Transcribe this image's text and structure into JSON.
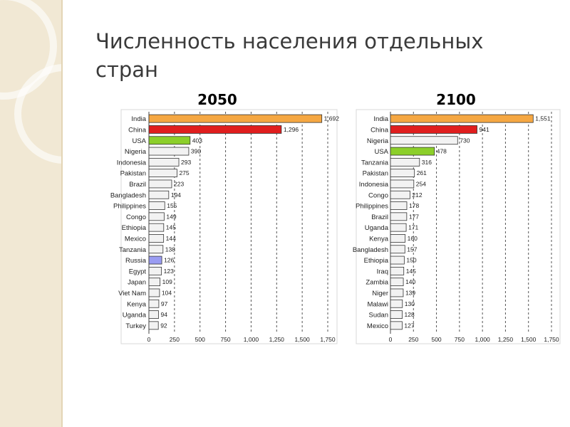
{
  "slide": {
    "title": "Численность населения отдельных стран"
  },
  "colors": {
    "orange": "#f5a742",
    "red": "#e01e1e",
    "green": "#8ccf2a",
    "blue": "#9a9cf2",
    "gray": "#f2f2f2"
  },
  "chart_data": [
    {
      "type": "bar",
      "orientation": "horizontal",
      "title": "2050",
      "categories": [
        "India",
        "China",
        "USA",
        "Nigeria",
        "Indonesia",
        "Pakistan",
        "Brazil",
        "Bangladesh",
        "Philippines",
        "Congo",
        "Ethiopia",
        "Mexico",
        "Tanzania",
        "Russia",
        "Egypt",
        "Japan",
        "Viet Nam",
        "Kenya",
        "Uganda",
        "Turkey"
      ],
      "values": [
        1692,
        1296,
        403,
        390,
        293,
        275,
        223,
        194,
        155,
        149,
        145,
        144,
        138,
        126,
        123,
        109,
        104,
        97,
        94,
        92
      ],
      "value_labels": [
        "1,692",
        "1,296",
        "403",
        "390",
        "293",
        "275",
        "223",
        "194",
        "155",
        "149",
        "145",
        "144",
        "138",
        "126",
        "123",
        "109",
        "104",
        "97",
        "94",
        "92"
      ],
      "colors": [
        "orange",
        "red",
        "green",
        "gray",
        "gray",
        "gray",
        "gray",
        "gray",
        "gray",
        "gray",
        "gray",
        "gray",
        "gray",
        "blue",
        "gray",
        "gray",
        "gray",
        "gray",
        "gray",
        "gray"
      ],
      "xlim": [
        0,
        1750
      ],
      "ticks": [
        0,
        250,
        500,
        750,
        1000,
        1250,
        1500,
        1750
      ],
      "tick_labels": [
        "0",
        "250",
        "500",
        "750",
        "1,000",
        "1,250",
        "1,500",
        "1,750"
      ],
      "grid": true
    },
    {
      "type": "bar",
      "orientation": "horizontal",
      "title": "2100",
      "categories": [
        "India",
        "China",
        "Nigeria",
        "USA",
        "Tanzania",
        "Pakistan",
        "Indonesia",
        "Congo",
        "Philippines",
        "Brazil",
        "Uganda",
        "Kenya",
        "Bangladesh",
        "Ethiopia",
        "Iraq",
        "Zambia",
        "Niger",
        "Malawi",
        "Sudan",
        "Mexico"
      ],
      "values": [
        1551,
        941,
        730,
        478,
        316,
        261,
        254,
        212,
        178,
        177,
        171,
        160,
        157,
        150,
        145,
        140,
        139,
        130,
        128,
        127
      ],
      "value_labels": [
        "1,551",
        "941",
        "730",
        "478",
        "316",
        "261",
        "254",
        "212",
        "178",
        "177",
        "171",
        "160",
        "157",
        "150",
        "145",
        "140",
        "139",
        "130",
        "128",
        "127"
      ],
      "colors": [
        "orange",
        "red",
        "gray",
        "green",
        "gray",
        "gray",
        "gray",
        "gray",
        "gray",
        "gray",
        "gray",
        "gray",
        "gray",
        "gray",
        "gray",
        "gray",
        "gray",
        "gray",
        "gray",
        "gray"
      ],
      "xlim": [
        0,
        1750
      ],
      "ticks": [
        0,
        250,
        500,
        750,
        1000,
        1250,
        1500,
        1750
      ],
      "tick_labels": [
        "0",
        "250",
        "500",
        "750",
        "1,000",
        "1,250",
        "1,500",
        "1,750"
      ],
      "grid": true
    }
  ]
}
